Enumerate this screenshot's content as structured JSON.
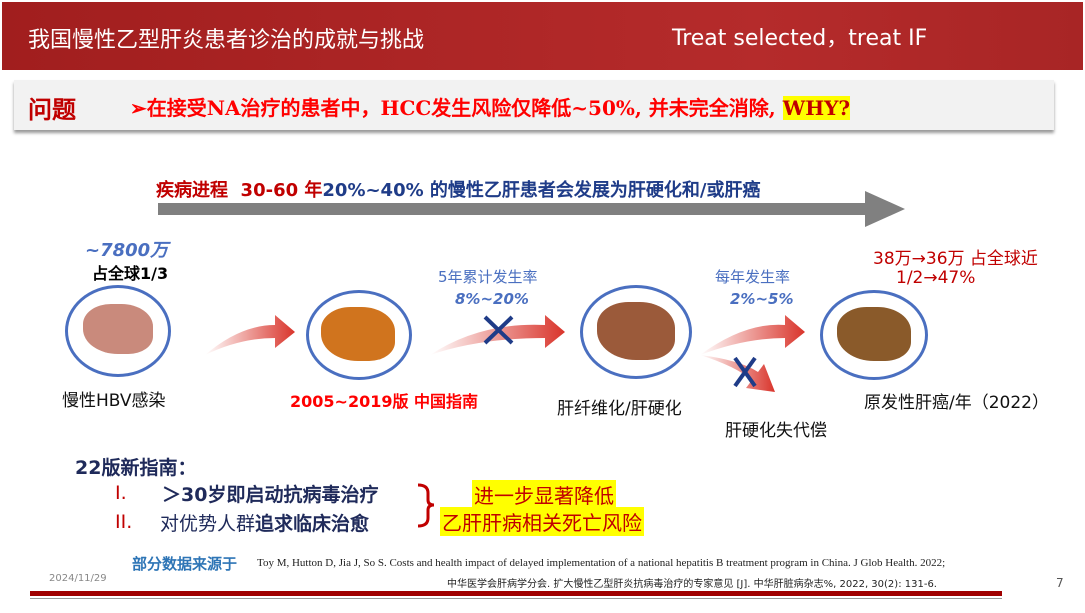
{
  "header": {
    "title": "我国慢性乙型肝炎患者诊治的成就与挑战",
    "subtitle": "Treat selected，treat  IF"
  },
  "question": {
    "label": "问题",
    "text": "➢在接受NA治疗的患者中，HCC发生风险仅降低~50%, 并未完全消除, ",
    "highlight": "WHY?"
  },
  "progression": {
    "label": "疾病进程",
    "years": "30-60 年",
    "text": "20%~40% 的慢性乙肝患者会发展为肝硬化和/或肝癌"
  },
  "stages": [
    {
      "top1": "~7800万",
      "top2": "占全球1/3",
      "label": "慢性HBV感染"
    },
    {
      "label": "2005~2019版 中国指南"
    },
    {
      "top1": "5年累计发生率",
      "top2": "8%~20%",
      "label": "肝纤维化/肝硬化"
    },
    {
      "top1": "每年发生率",
      "top2": "2%~5%",
      "label": "原发性肝癌/年（2022）",
      "sub": "肝硬化失代偿"
    }
  ],
  "hcc_stats": {
    "line1": "38万→36万 占全球近",
    "line2": "1/2→47%"
  },
  "guide": {
    "title": "22版新指南：",
    "items": [
      {
        "num": "I.",
        "text": "＞30岁即启动抗病毒治疗"
      },
      {
        "num": "II.",
        "text_plain": "对优势人群",
        "text_bold": "追求临床治愈"
      }
    ],
    "result1": "进一步显著降低",
    "result2": "乙肝肝病相关死亡风险"
  },
  "footer": {
    "source_label": "部分数据来源于",
    "ref1": "Toy M, Hutton D, Jia J, So S. Costs and health impact of delayed implementation of a national hepatitis B treatment program in China. J Glob Health. 2022;",
    "ref2": "中华医学会肝病学分会. 扩大慢性乙型肝炎抗病毒治疗的专家意见 [J]. 中华肝脏病杂志%, 2022, 30(2): 131-6.",
    "date": "2024/11/29",
    "page": "7"
  },
  "colors": {
    "header": "#a82525",
    "accent_red": "#c00000",
    "blue": "#1f3c88",
    "highlight": "#ffff00"
  }
}
